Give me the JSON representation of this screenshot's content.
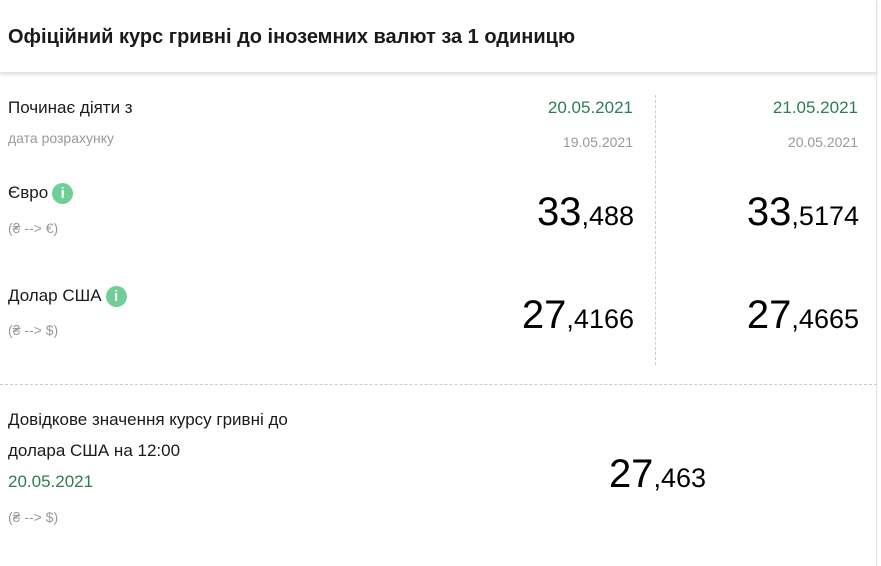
{
  "title": "Офіційний курс гривні до іноземних валют за 1 одиницю",
  "labels": {
    "effective": "Починає діяти з",
    "calc_date": "дата розрахунку"
  },
  "columns": [
    {
      "effective": "20.05.2021",
      "calc": "19.05.2021"
    },
    {
      "effective": "21.05.2021",
      "calc": "20.05.2021"
    }
  ],
  "currencies": [
    {
      "name": "Євро",
      "pair": "(₴ --> €)",
      "rates": [
        {
          "int": "33",
          "frac": ",488"
        },
        {
          "int": "33",
          "frac": ",5174"
        }
      ]
    },
    {
      "name": "Долар США",
      "pair": "(₴ --> $)",
      "rates": [
        {
          "int": "27",
          "frac": ",4166"
        },
        {
          "int": "27",
          "frac": ",4665"
        }
      ]
    }
  ],
  "reference": {
    "line1": "Довідкове значення курсу гривні до",
    "line2": "долара США на 12:00",
    "date": "20.05.2021",
    "pair": "(₴ --> $)",
    "int": "27",
    "frac": ",463"
  },
  "colors": {
    "accent": "#2e7d52",
    "info": "#6fcf97"
  }
}
